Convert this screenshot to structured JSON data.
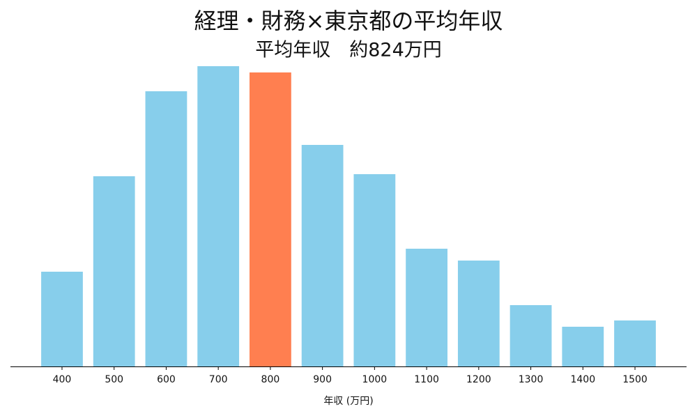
{
  "chart_data": {
    "type": "bar",
    "title": "経理・財務×東京都の平均年収",
    "subtitle": "平均年収　約824万円",
    "xlabel": "年収 (万円)",
    "categories": [
      "400",
      "500",
      "600",
      "700",
      "800",
      "900",
      "1000",
      "1100",
      "1200",
      "1300",
      "1400",
      "1500"
    ],
    "values": [
      136,
      273,
      395,
      431,
      422,
      318,
      276,
      169,
      152,
      88,
      57,
      66
    ],
    "colors": [
      "#87ceeb",
      "#87ceeb",
      "#87ceeb",
      "#87ceeb",
      "#ff7f50",
      "#87ceeb",
      "#87ceeb",
      "#87ceeb",
      "#87ceeb",
      "#87ceeb",
      "#87ceeb",
      "#87ceeb"
    ],
    "ylim": [
      0,
      450
    ]
  }
}
